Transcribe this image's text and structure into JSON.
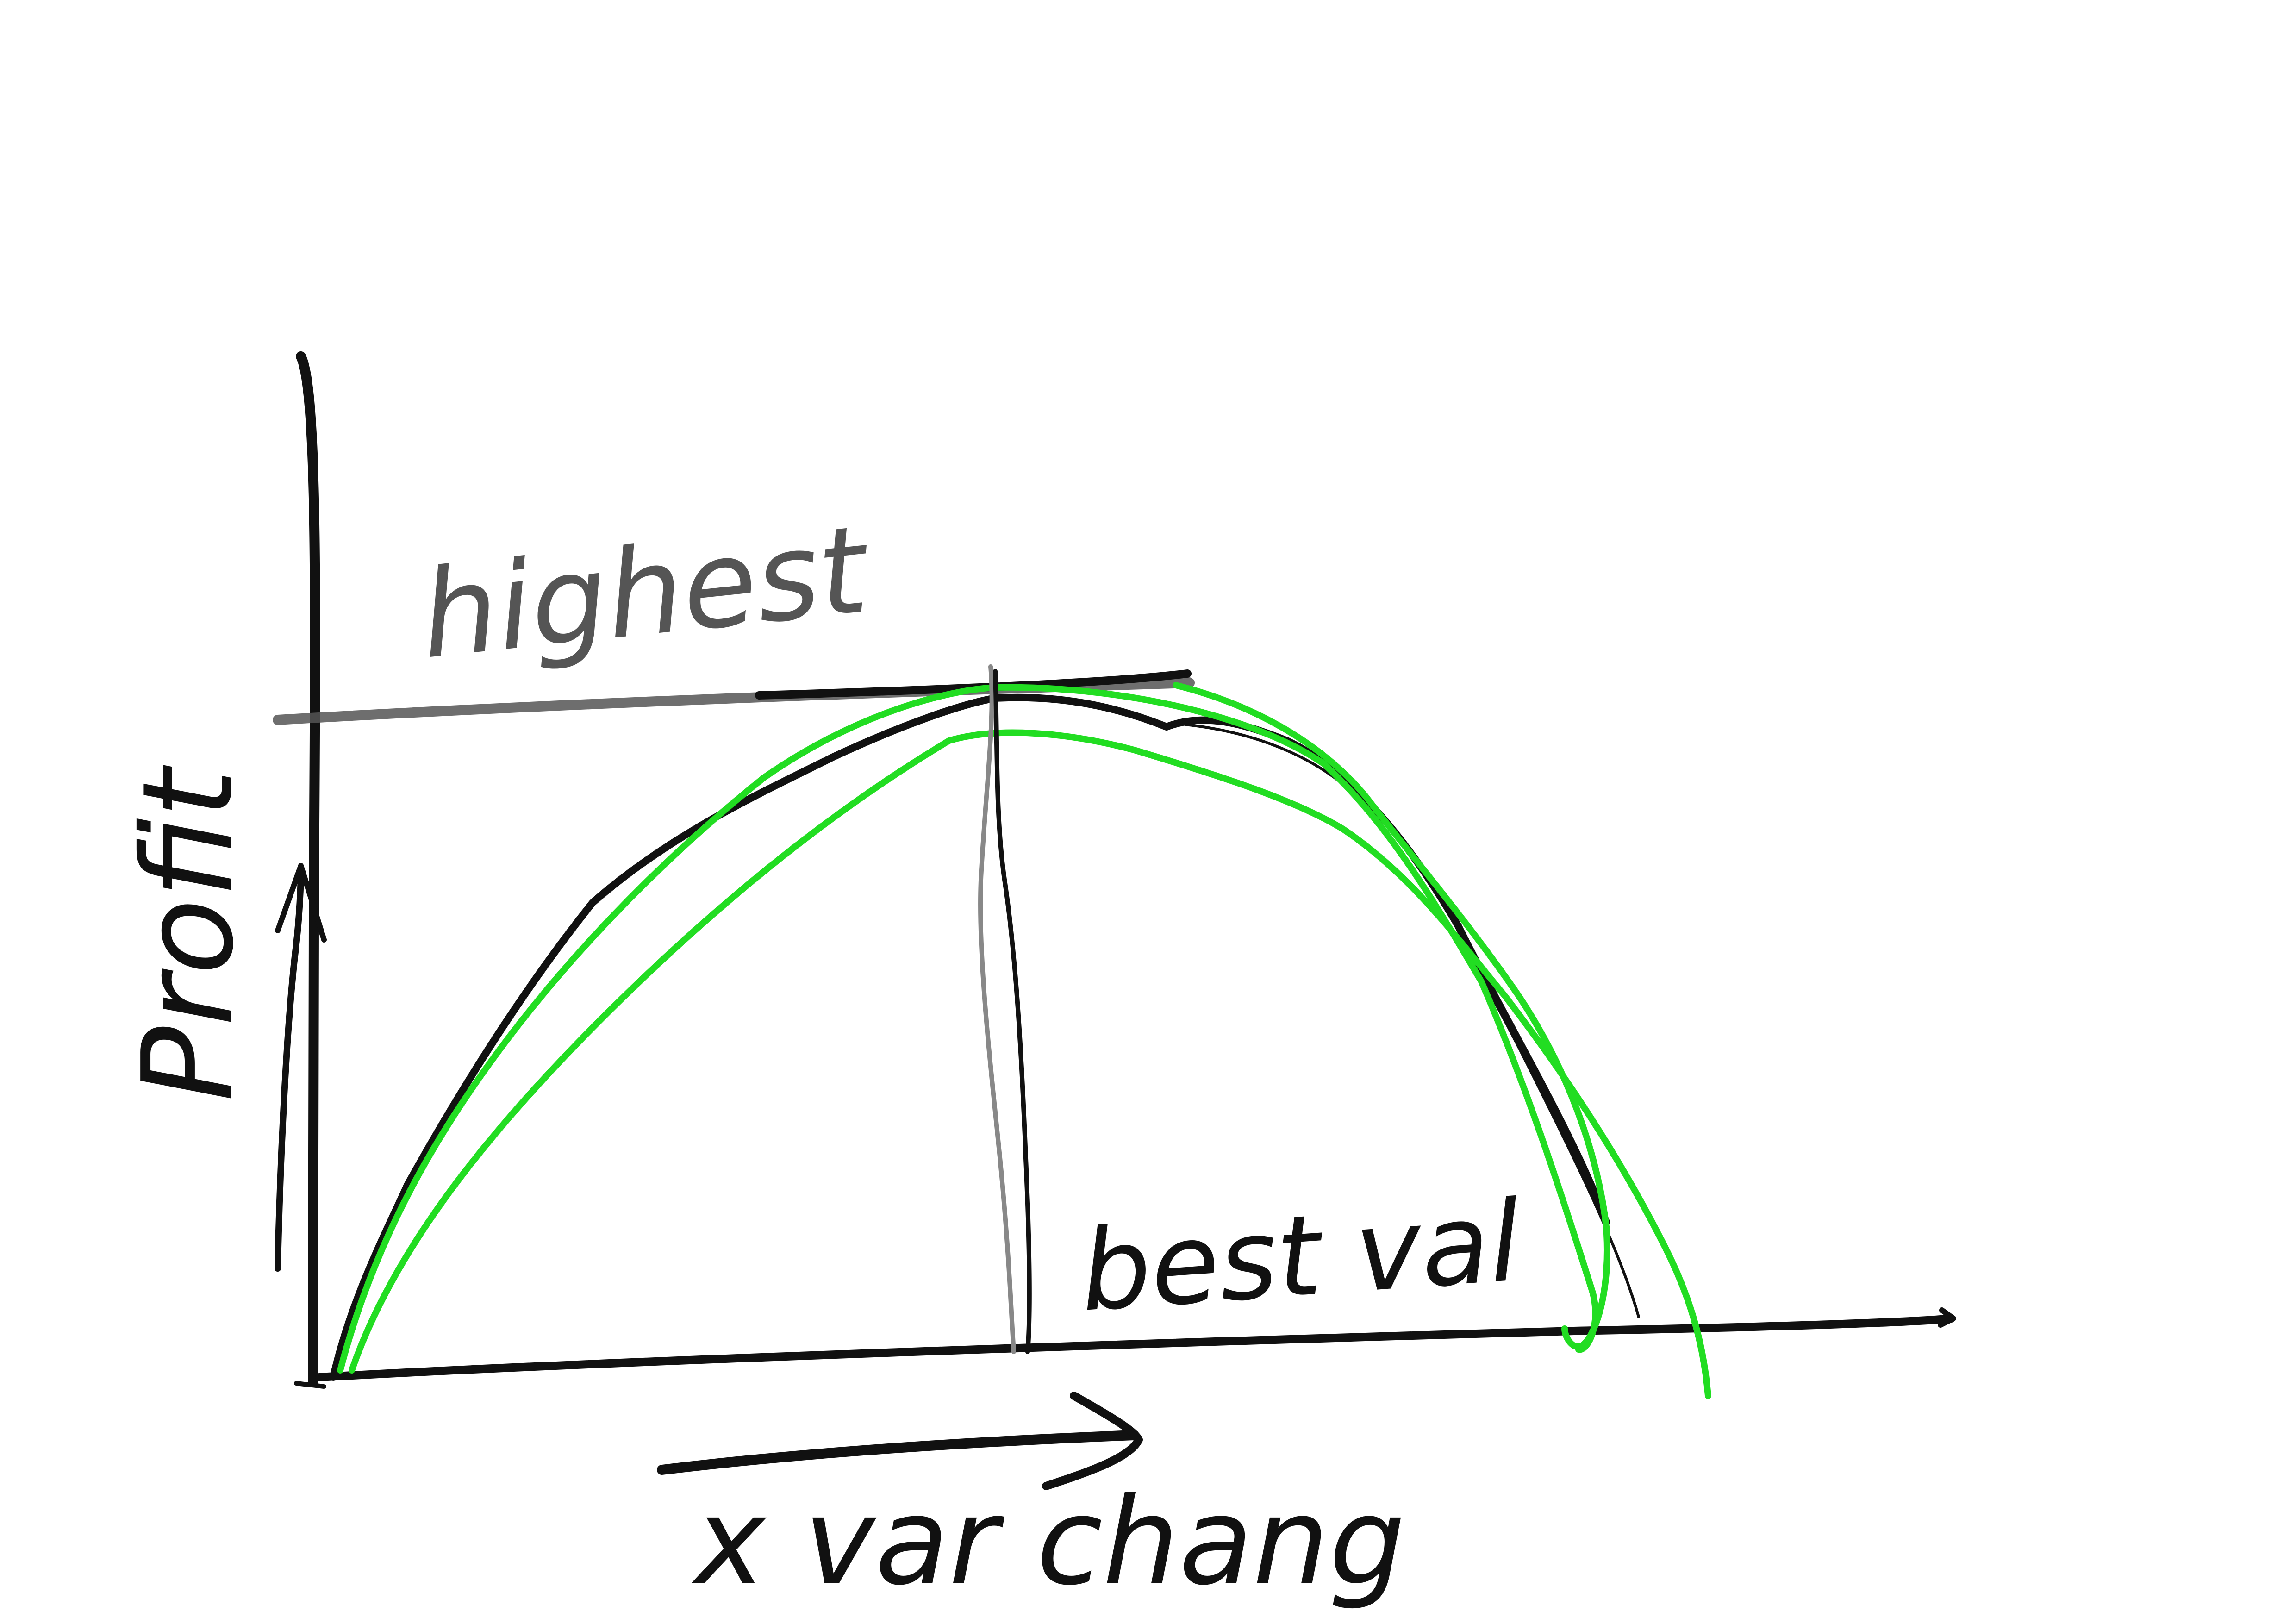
{
  "labels": {
    "y_axis": "Profit",
    "x_axis": "x var chang",
    "top_line": "highest",
    "peak_marker": "best val"
  },
  "colors": {
    "ink": "#111111",
    "grey_ink": "#555555",
    "curve": "#22dd22",
    "background": "#ffffff"
  }
}
